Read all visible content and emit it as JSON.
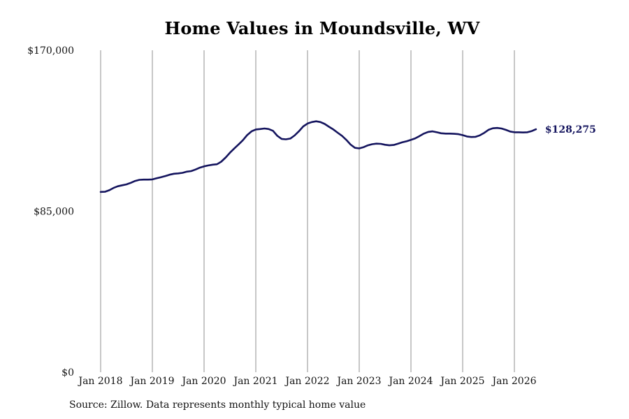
{
  "chart_data": {
    "type": "line",
    "title": "Home Values in Moundsville, WV",
    "xlabel": "",
    "ylabel": "",
    "ylim": [
      0,
      170000
    ],
    "y_tick_labels": [
      "$0",
      "$85,000",
      "$170,000"
    ],
    "y_ticks": [
      0,
      85000,
      170000
    ],
    "x_ticks": [
      2018,
      2019,
      2020,
      2021,
      2022,
      2023,
      2024,
      2025,
      2026
    ],
    "x_tick_labels": [
      "Jan 2018",
      "Jan 2019",
      "Jan 2020",
      "Jan 2021",
      "Jan 2022",
      "Jan 2023",
      "Jan 2024",
      "Jan 2025",
      "Jan 2026"
    ],
    "xlim": [
      2018,
      2026.6
    ],
    "grid": "vertical",
    "line_color": "#14145e",
    "grid_color": "#8f8f8f",
    "series": [
      {
        "points": [
          [
            2018.0,
            95200
          ],
          [
            2018.083,
            95300
          ],
          [
            2018.167,
            96100
          ],
          [
            2018.25,
            97300
          ],
          [
            2018.333,
            98200
          ],
          [
            2018.417,
            98700
          ],
          [
            2018.5,
            99200
          ],
          [
            2018.583,
            100000
          ],
          [
            2018.667,
            101000
          ],
          [
            2018.75,
            101600
          ],
          [
            2018.833,
            101700
          ],
          [
            2018.917,
            101700
          ],
          [
            2019.0,
            101800
          ],
          [
            2019.083,
            102400
          ],
          [
            2019.167,
            103000
          ],
          [
            2019.25,
            103600
          ],
          [
            2019.333,
            104300
          ],
          [
            2019.417,
            104800
          ],
          [
            2019.5,
            105000
          ],
          [
            2019.583,
            105300
          ],
          [
            2019.667,
            105900
          ],
          [
            2019.75,
            106200
          ],
          [
            2019.833,
            107000
          ],
          [
            2019.917,
            108000
          ],
          [
            2020.0,
            108700
          ],
          [
            2020.083,
            109200
          ],
          [
            2020.167,
            109600
          ],
          [
            2020.25,
            109800
          ],
          [
            2020.333,
            111200
          ],
          [
            2020.417,
            113400
          ],
          [
            2020.5,
            115900
          ],
          [
            2020.583,
            118100
          ],
          [
            2020.667,
            120300
          ],
          [
            2020.75,
            122500
          ],
          [
            2020.833,
            125200
          ],
          [
            2020.917,
            127200
          ],
          [
            2021.0,
            128200
          ],
          [
            2021.083,
            128400
          ],
          [
            2021.167,
            128700
          ],
          [
            2021.25,
            128400
          ],
          [
            2021.333,
            127500
          ],
          [
            2021.417,
            124800
          ],
          [
            2021.5,
            123200
          ],
          [
            2021.583,
            123000
          ],
          [
            2021.667,
            123400
          ],
          [
            2021.75,
            125000
          ],
          [
            2021.833,
            127200
          ],
          [
            2021.917,
            129800
          ],
          [
            2022.0,
            131300
          ],
          [
            2022.083,
            132100
          ],
          [
            2022.167,
            132500
          ],
          [
            2022.25,
            132100
          ],
          [
            2022.333,
            131100
          ],
          [
            2022.417,
            129600
          ],
          [
            2022.5,
            128200
          ],
          [
            2022.583,
            126500
          ],
          [
            2022.667,
            124800
          ],
          [
            2022.75,
            122700
          ],
          [
            2022.833,
            120200
          ],
          [
            2022.917,
            118500
          ],
          [
            2023.0,
            118200
          ],
          [
            2023.083,
            118800
          ],
          [
            2023.167,
            119800
          ],
          [
            2023.25,
            120400
          ],
          [
            2023.333,
            120700
          ],
          [
            2023.417,
            120600
          ],
          [
            2023.5,
            120100
          ],
          [
            2023.583,
            119800
          ],
          [
            2023.667,
            120000
          ],
          [
            2023.75,
            120700
          ],
          [
            2023.833,
            121400
          ],
          [
            2023.917,
            122000
          ],
          [
            2024.0,
            122700
          ],
          [
            2024.083,
            123500
          ],
          [
            2024.167,
            124700
          ],
          [
            2024.25,
            126000
          ],
          [
            2024.333,
            126900
          ],
          [
            2024.417,
            127200
          ],
          [
            2024.5,
            126700
          ],
          [
            2024.583,
            126200
          ],
          [
            2024.667,
            126000
          ],
          [
            2024.75,
            126000
          ],
          [
            2024.833,
            125900
          ],
          [
            2024.917,
            125700
          ],
          [
            2025.0,
            125200
          ],
          [
            2025.083,
            124500
          ],
          [
            2025.167,
            124200
          ],
          [
            2025.25,
            124300
          ],
          [
            2025.333,
            125100
          ],
          [
            2025.417,
            126400
          ],
          [
            2025.5,
            128000
          ],
          [
            2025.583,
            128800
          ],
          [
            2025.667,
            129000
          ],
          [
            2025.75,
            128700
          ],
          [
            2025.833,
            128000
          ],
          [
            2025.917,
            127100
          ],
          [
            2026.0,
            126700
          ],
          [
            2026.083,
            126700
          ],
          [
            2026.167,
            126600
          ],
          [
            2026.25,
            126700
          ],
          [
            2026.333,
            127300
          ],
          [
            2026.417,
            128275
          ]
        ]
      }
    ],
    "annotation": "$128,275"
  },
  "source": "Source: Zillow. Data represents monthly typical home value"
}
